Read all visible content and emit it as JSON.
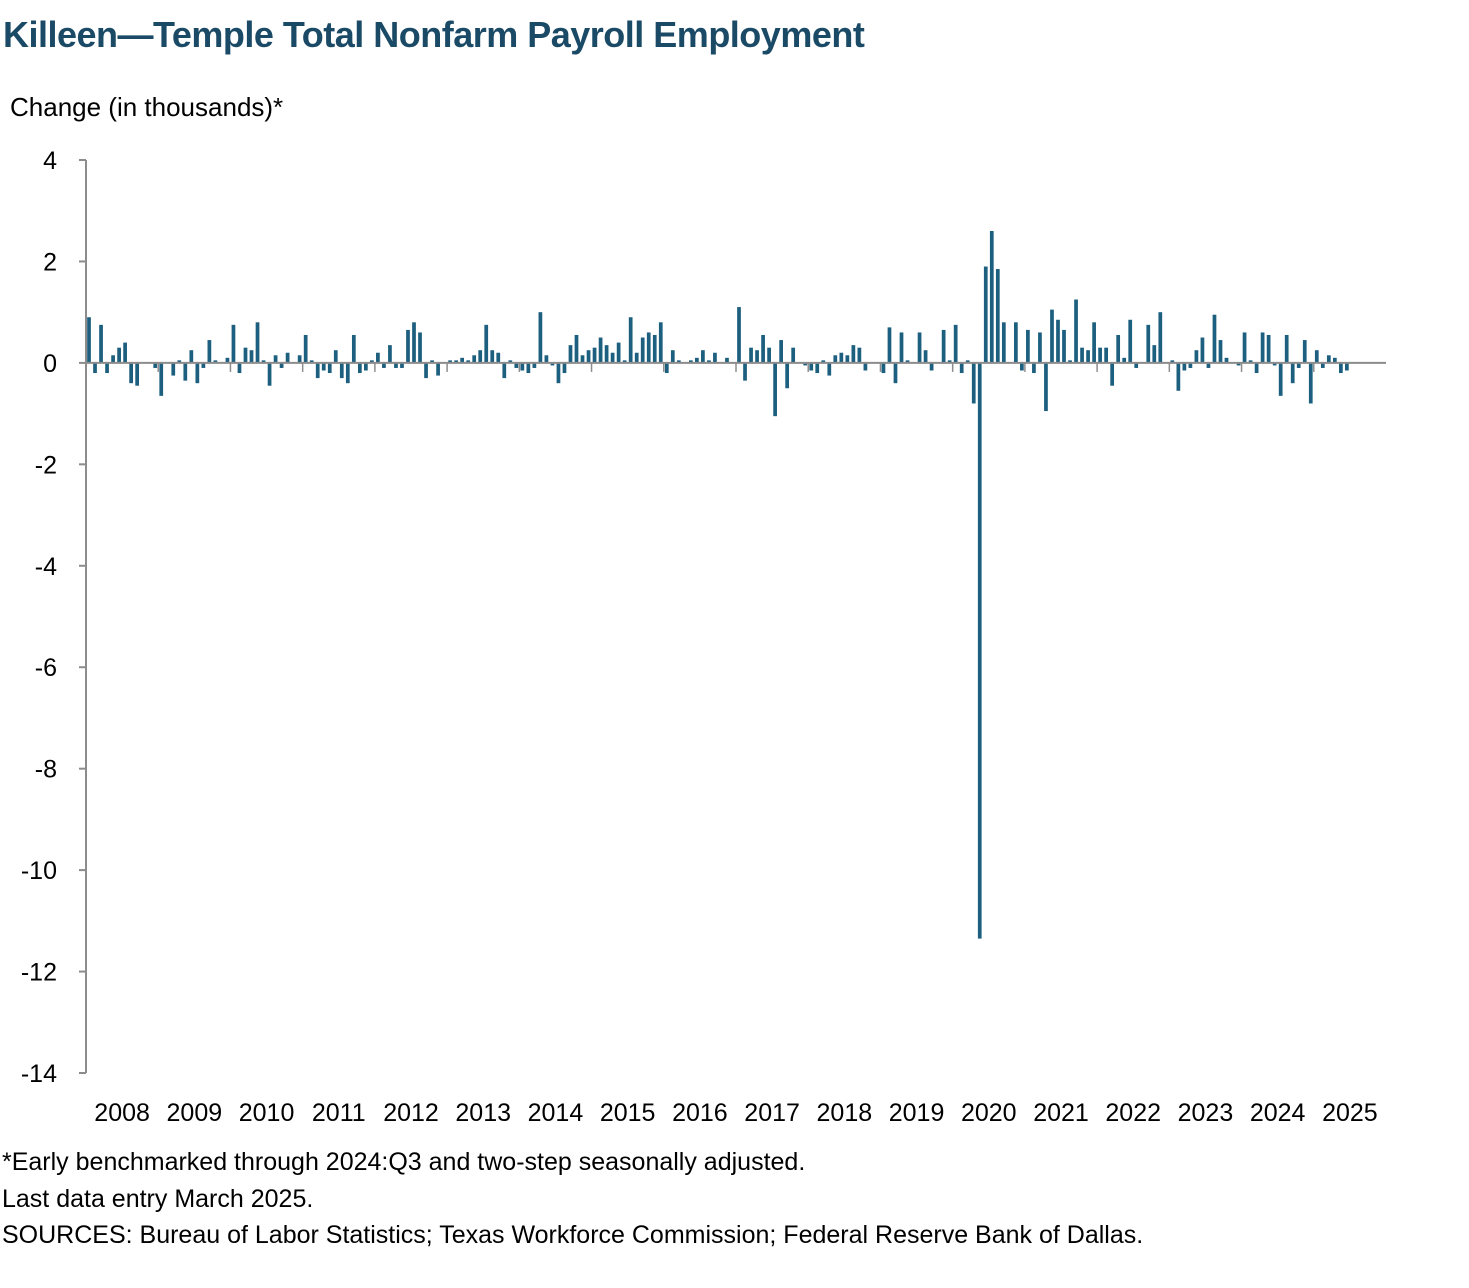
{
  "title": "Killeen—Temple Total Nonfarm Payroll Employment",
  "notes": {
    "footnote": "*Early benchmarked through 2024:Q3 and two-step seasonally adjusted.",
    "last_data": "Last data entry March 2025.",
    "sources": "SOURCES: Bureau of Labor Statistics; Texas Workforce Commission; Federal Reserve Bank of Dallas."
  },
  "colors": {
    "bar": "#1d5f7e",
    "axis": "#8c8c8c",
    "title": "#1b4a66"
  },
  "chart_data": {
    "type": "bar",
    "title": "Killeen—Temple Total Nonfarm Payroll Employment",
    "ylabel": "Change (in thousands)*",
    "xlabel": "",
    "ylim": [
      -14,
      4
    ],
    "yticks": [
      4,
      2,
      0,
      -2,
      -4,
      -6,
      -8,
      -10,
      -12,
      -14
    ],
    "x_tick_labels": [
      "2008",
      "2009",
      "2010",
      "2011",
      "2012",
      "2013",
      "2014",
      "2015",
      "2016",
      "2017",
      "2018",
      "2019",
      "2020",
      "2021",
      "2022",
      "2023",
      "2024",
      "2025"
    ],
    "start": "2008-01",
    "end": "2025-03",
    "frequency": "monthly",
    "grid": false,
    "legend": "none",
    "values": [
      0.9,
      -0.2,
      0.75,
      -0.2,
      0.15,
      0.3,
      0.4,
      -0.4,
      -0.45,
      0.0,
      0.0,
      -0.1,
      -0.65,
      0.0,
      -0.25,
      0.05,
      -0.35,
      0.25,
      -0.4,
      -0.1,
      0.45,
      0.05,
      0.0,
      0.1,
      0.75,
      -0.2,
      0.3,
      0.25,
      0.8,
      0.05,
      -0.45,
      0.15,
      -0.1,
      0.2,
      0.0,
      0.15,
      0.55,
      0.05,
      -0.3,
      -0.15,
      -0.2,
      0.25,
      -0.3,
      -0.4,
      0.55,
      -0.2,
      -0.15,
      0.05,
      0.2,
      -0.1,
      0.35,
      -0.1,
      -0.1,
      0.65,
      0.8,
      0.6,
      -0.3,
      0.05,
      -0.25,
      0.0,
      0.05,
      0.05,
      0.1,
      0.05,
      0.15,
      0.25,
      0.75,
      0.25,
      0.2,
      -0.3,
      0.05,
      -0.1,
      -0.15,
      -0.2,
      -0.1,
      1.0,
      0.15,
      -0.05,
      -0.4,
      -0.2,
      0.35,
      0.55,
      0.15,
      0.25,
      0.3,
      0.5,
      0.35,
      0.2,
      0.4,
      0.05,
      0.9,
      0.2,
      0.5,
      0.6,
      0.55,
      0.8,
      -0.2,
      0.25,
      0.05,
      0.0,
      0.05,
      0.1,
      0.25,
      0.05,
      0.2,
      0.0,
      0.1,
      0.0,
      1.1,
      -0.35,
      0.3,
      0.25,
      0.55,
      0.3,
      -1.05,
      0.45,
      -0.5,
      0.3,
      0.0,
      -0.05,
      -0.15,
      -0.2,
      0.05,
      -0.25,
      0.15,
      0.2,
      0.15,
      0.35,
      0.3,
      -0.15,
      0.0,
      0.0,
      -0.2,
      0.7,
      -0.4,
      0.6,
      0.05,
      0.0,
      0.6,
      0.25,
      -0.15,
      0.0,
      0.65,
      0.05,
      0.75,
      -0.2,
      0.05,
      -0.8,
      -11.35,
      1.9,
      2.6,
      1.85,
      0.8,
      0.0,
      0.8,
      -0.15,
      0.65,
      -0.2,
      0.6,
      -0.95,
      1.05,
      0.85,
      0.65,
      0.05,
      1.25,
      0.3,
      0.25,
      0.8,
      0.3,
      0.3,
      -0.45,
      0.55,
      0.1,
      0.85,
      -0.1,
      0.0,
      0.75,
      0.35,
      1.0,
      0.0,
      0.05,
      -0.55,
      -0.15,
      -0.1,
      0.25,
      0.5,
      -0.1,
      0.95,
      0.45,
      0.1,
      0.0,
      -0.05,
      0.6,
      0.05,
      -0.2,
      0.6,
      0.55,
      -0.05,
      -0.65,
      0.55,
      -0.4,
      -0.1,
      0.45,
      -0.8,
      0.25,
      -0.1,
      0.15,
      0.1,
      -0.2,
      -0.15,
      0.0
    ]
  }
}
